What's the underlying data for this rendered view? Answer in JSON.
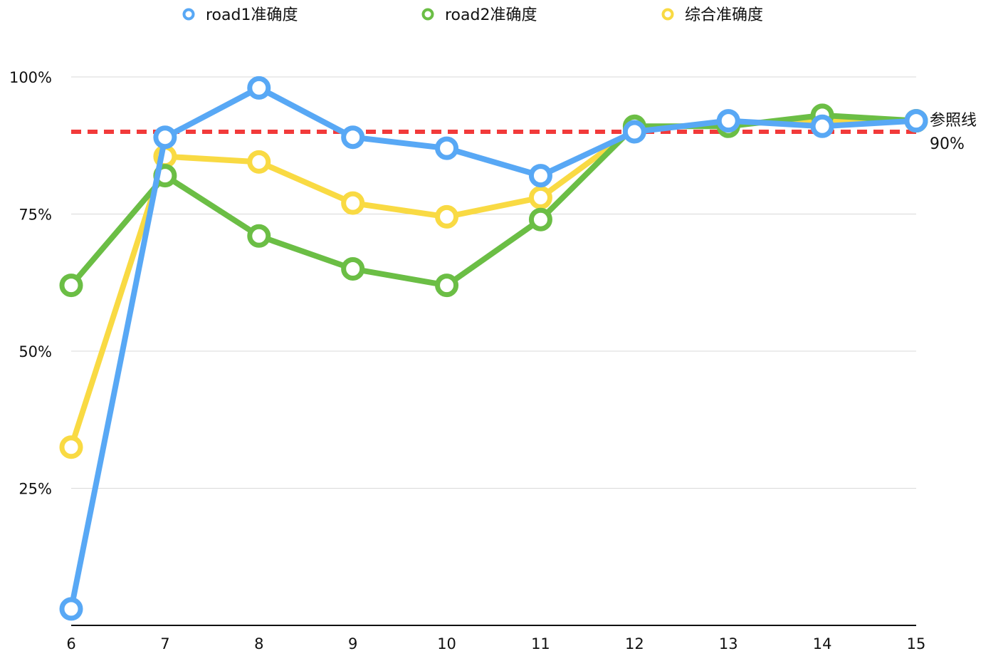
{
  "chart_data": {
    "type": "line",
    "title": "",
    "xlabel": "",
    "ylabel": "",
    "categories": [
      "6",
      "7",
      "8",
      "9",
      "10",
      "11",
      "12",
      "13",
      "14",
      "15"
    ],
    "ylim": [
      0,
      100
    ],
    "y_ticks": [
      "25%",
      "50%",
      "75%",
      "100%"
    ],
    "y_tick_values": [
      25,
      50,
      75,
      100
    ],
    "grid": true,
    "legend_position": "top",
    "series": [
      {
        "name": "road1准确度",
        "color": "#58A8F5",
        "values": [
          3,
          89,
          98,
          89,
          87,
          82,
          90,
          92,
          91,
          92
        ]
      },
      {
        "name": "road2准确度",
        "color": "#6BBE45",
        "values": [
          62,
          82,
          71,
          65,
          62,
          74,
          91,
          91,
          93,
          92
        ]
      },
      {
        "name": "综合准确度",
        "color": "#F9DA43",
        "values": [
          32.5,
          85.5,
          84.5,
          77,
          74.5,
          78,
          90.5,
          91.5,
          92,
          92
        ]
      }
    ],
    "reference_line": {
      "value": 90,
      "label": "参照线",
      "value_label": "90%",
      "color": "#F23A3A",
      "style": "dashed"
    }
  }
}
